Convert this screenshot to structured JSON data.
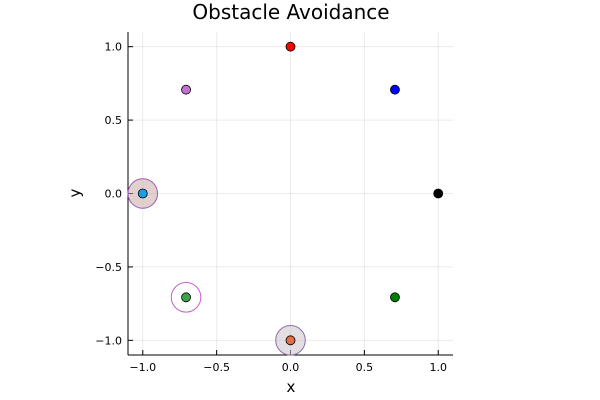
{
  "chart_data": {
    "type": "scatter",
    "title": "Obstacle Avoidance",
    "xlabel": "x",
    "ylabel": "y",
    "xlim": [
      -1.1,
      1.1
    ],
    "ylim": [
      -1.1,
      1.1
    ],
    "grid": true,
    "legend": "none",
    "xticks": [
      -1.0,
      -0.5,
      0.0,
      0.5,
      1.0
    ],
    "yticks": [
      -1.0,
      -0.5,
      0.0,
      0.5,
      1.0
    ],
    "xtick_labels": [
      "−1.0",
      "−0.5",
      "0.0",
      "0.5",
      "1.0"
    ],
    "ytick_labels": [
      "−1.0",
      "−0.5",
      "0.0",
      "0.5",
      "1.0"
    ],
    "obstacles": [
      {
        "x": -1.0,
        "y": 0.0,
        "r": 0.1,
        "fill": "#c9a9a6",
        "stroke": "#9b59b6"
      },
      {
        "x": -0.707,
        "y": -0.707,
        "r": 0.1,
        "fill": "#ffffff",
        "stroke": "#c65fcc"
      },
      {
        "x": 0.0,
        "y": -1.0,
        "r": 0.1,
        "fill": "#cbc3c9",
        "stroke": "#8e6fa8"
      }
    ],
    "points": [
      {
        "x": 0.0,
        "y": 1.0,
        "color": "#ff0000"
      },
      {
        "x": 0.707,
        "y": 0.707,
        "color": "#0000ff"
      },
      {
        "x": 1.0,
        "y": 0.0,
        "color": "#000000"
      },
      {
        "x": 0.707,
        "y": -0.707,
        "color": "#008000"
      },
      {
        "x": 0.0,
        "y": -1.0,
        "color": "#e26f46"
      },
      {
        "x": -0.707,
        "y": -0.707,
        "color": "#3da44d"
      },
      {
        "x": -1.0,
        "y": 0.0,
        "color": "#1f9ee8"
      },
      {
        "x": -0.707,
        "y": 0.707,
        "color": "#c271d2"
      }
    ]
  }
}
